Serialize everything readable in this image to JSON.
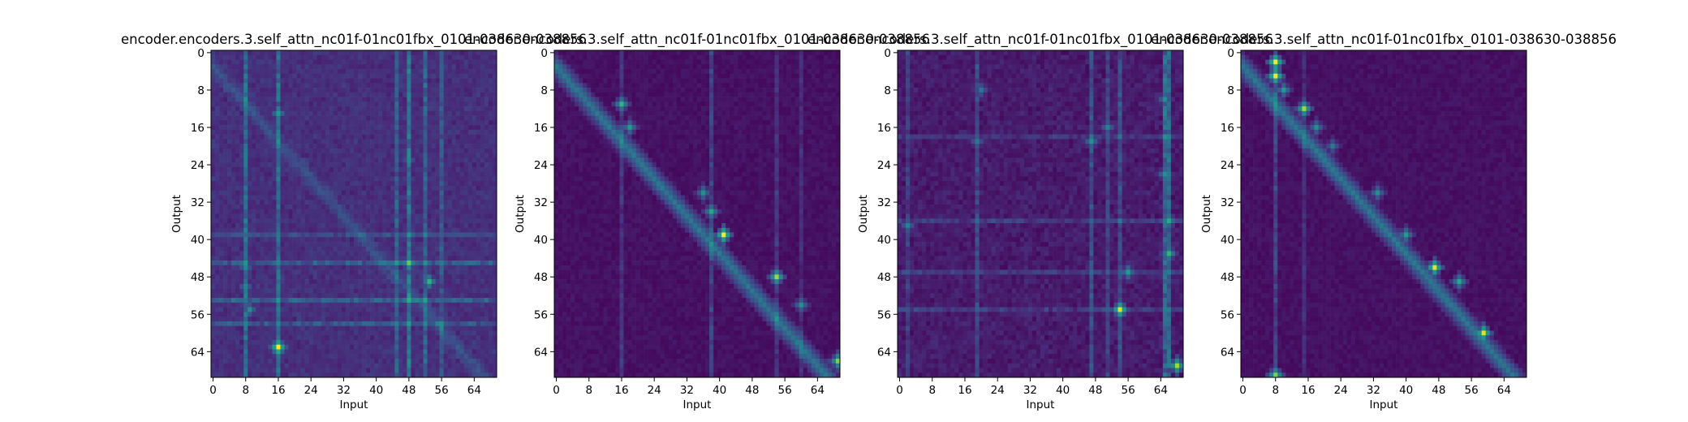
{
  "figure": {
    "background": "#ffffff"
  },
  "chart_data": [
    {
      "type": "heatmap",
      "title": "encoder.encoders.3.self_attn_nc01f-01nc01fbx_0101-038630-038856",
      "xlabel": "Input",
      "ylabel": "Output",
      "xticks": [
        "0",
        "8",
        "16",
        "24",
        "32",
        "40",
        "48",
        "56",
        "64"
      ],
      "yticks": [
        "0",
        "8",
        "16",
        "24",
        "32",
        "40",
        "48",
        "56",
        "64"
      ],
      "grid": false,
      "colormap": "viridis",
      "input_len": 70,
      "output_len": 70,
      "pattern": "diffuse",
      "hotspots": [
        [
          16,
          63,
          1.0
        ],
        [
          16,
          13,
          0.55
        ],
        [
          48,
          45,
          0.75
        ],
        [
          53,
          49,
          0.65
        ],
        [
          8,
          46,
          0.45
        ],
        [
          8,
          50,
          0.45
        ],
        [
          9,
          55,
          0.5
        ],
        [
          16,
          64,
          0.6
        ],
        [
          48,
          23,
          0.4
        ]
      ],
      "columns": [
        [
          8,
          0.28
        ],
        [
          16,
          0.3
        ],
        [
          48,
          0.35
        ],
        [
          52,
          0.25
        ],
        [
          45,
          0.2
        ],
        [
          56,
          0.18
        ]
      ],
      "rows": [
        [
          45,
          0.22
        ],
        [
          53,
          0.25
        ],
        [
          58,
          0.2
        ],
        [
          39,
          0.15
        ]
      ]
    },
    {
      "type": "heatmap",
      "title": "encoder.encoders.3.self_attn_nc01f-01nc01fbx_0101-038630-038856",
      "xlabel": "Input",
      "ylabel": "Output",
      "xticks": [
        "0",
        "8",
        "16",
        "24",
        "32",
        "40",
        "48",
        "56",
        "64"
      ],
      "yticks": [
        "0",
        "8",
        "16",
        "24",
        "32",
        "40",
        "48",
        "56",
        "64"
      ],
      "grid": false,
      "colormap": "viridis",
      "input_len": 70,
      "output_len": 70,
      "pattern": "diagonal",
      "hotspots": [
        [
          41,
          39,
          1.0
        ],
        [
          54,
          48,
          0.85
        ],
        [
          69,
          66,
          0.8
        ],
        [
          16,
          11,
          0.65
        ],
        [
          38,
          34,
          0.6
        ],
        [
          60,
          54,
          0.5
        ],
        [
          18,
          16,
          0.55
        ],
        [
          36,
          30,
          0.5
        ]
      ],
      "columns": [
        [
          38,
          0.2
        ],
        [
          16,
          0.15
        ],
        [
          54,
          0.15
        ],
        [
          60,
          0.12
        ]
      ],
      "rows": []
    },
    {
      "type": "heatmap",
      "title": "encoder.encoders.3.self_attn_nc01f-01nc01fbx_0101-038630-038856",
      "xlabel": "Input",
      "ylabel": "Output",
      "xticks": [
        "0",
        "8",
        "16",
        "24",
        "32",
        "40",
        "48",
        "56",
        "64"
      ],
      "yticks": [
        "0",
        "8",
        "16",
        "24",
        "32",
        "40",
        "48",
        "56",
        "64"
      ],
      "grid": false,
      "colormap": "viridis",
      "input_len": 70,
      "output_len": 70,
      "pattern": "scattered",
      "hotspots": [
        [
          54,
          55,
          0.95
        ],
        [
          68,
          67,
          0.85
        ],
        [
          66,
          43,
          0.65
        ],
        [
          66,
          36,
          0.6
        ],
        [
          65,
          26,
          0.5
        ],
        [
          47,
          19,
          0.5
        ],
        [
          56,
          47,
          0.55
        ],
        [
          2,
          37,
          0.45
        ],
        [
          19,
          19,
          0.4
        ],
        [
          51,
          16,
          0.45
        ],
        [
          20,
          8,
          0.4
        ],
        [
          65,
          10,
          0.5
        ]
      ],
      "columns": [
        [
          65,
          0.35
        ],
        [
          66,
          0.35
        ],
        [
          47,
          0.22
        ],
        [
          54,
          0.22
        ],
        [
          19,
          0.2
        ],
        [
          2,
          0.15
        ],
        [
          51,
          0.18
        ]
      ],
      "rows": [
        [
          36,
          0.15
        ],
        [
          47,
          0.15
        ],
        [
          55,
          0.15
        ],
        [
          18,
          0.12
        ]
      ]
    },
    {
      "type": "heatmap",
      "title": "encoder.encoders.3.self_attn_nc01f-01nc01fbx_0101-038630-038856",
      "xlabel": "Input",
      "ylabel": "Output",
      "xticks": [
        "0",
        "8",
        "16",
        "24",
        "32",
        "40",
        "48",
        "56",
        "64"
      ],
      "yticks": [
        "0",
        "8",
        "16",
        "24",
        "32",
        "40",
        "48",
        "56",
        "64"
      ],
      "grid": false,
      "colormap": "viridis",
      "input_len": 70,
      "output_len": 70,
      "pattern": "diagonal",
      "hotspots": [
        [
          8,
          2,
          1.0
        ],
        [
          8,
          5,
          1.0
        ],
        [
          47,
          46,
          0.95
        ],
        [
          59,
          60,
          0.95
        ],
        [
          15,
          12,
          0.85
        ],
        [
          8,
          69,
          0.8
        ],
        [
          40,
          39,
          0.55
        ],
        [
          33,
          30,
          0.5
        ],
        [
          53,
          49,
          0.6
        ],
        [
          10,
          8,
          0.55
        ],
        [
          18,
          16,
          0.5
        ],
        [
          22,
          20,
          0.4
        ]
      ],
      "columns": [
        [
          8,
          0.22
        ],
        [
          15,
          0.12
        ]
      ],
      "rows": []
    }
  ]
}
